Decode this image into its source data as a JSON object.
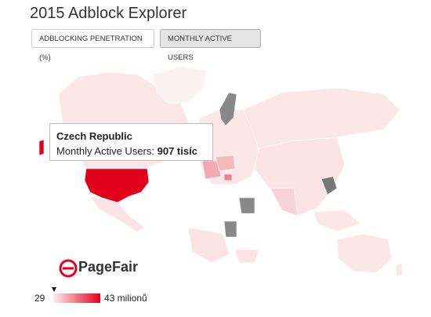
{
  "header": {
    "title": "2015 Adblock Explorer"
  },
  "buttons": [
    "ADBLOCKING PENETRATION (%)",
    "MONTHLY ACTIVE USERS"
  ],
  "tooltip": {
    "country": "Czech Republic",
    "label": "Monthly Active Users:",
    "value": "907 tisíc"
  },
  "logo": {
    "text": "PageFair"
  },
  "legend": {
    "min": 29,
    "max": "43 milionů"
  }
}
